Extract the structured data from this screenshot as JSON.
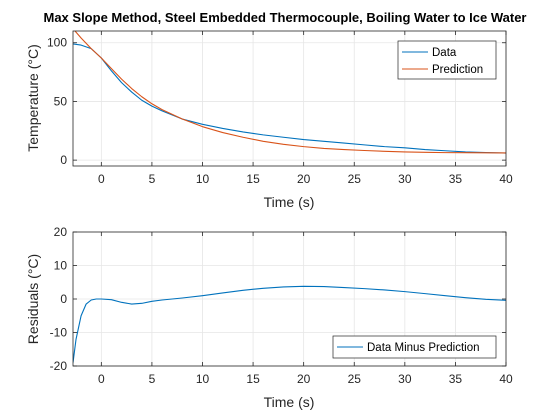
{
  "colors": {
    "data": "#0072BD",
    "prediction": "#D95319",
    "grid": "#e6e6e6",
    "axis": "#262626"
  },
  "chart_data": [
    {
      "type": "line",
      "title": "Max Slope Method, Steel Embedded Thermocouple, Boiling Water to Ice Water",
      "xlabel": "Time (s)",
      "ylabel": "Temperature (°C)",
      "xlim": [
        -2.8,
        40
      ],
      "ylim": [
        -5,
        110
      ],
      "xticks": [
        0,
        5,
        10,
        15,
        20,
        25,
        30,
        35,
        40
      ],
      "yticks": [
        0,
        50,
        100
      ],
      "grid": true,
      "legend": "top-right",
      "series": [
        {
          "name": "Data",
          "x": [
            -2.8,
            -2,
            -1,
            0,
            1,
            2,
            3,
            4,
            5,
            6,
            8,
            10,
            12,
            14,
            16,
            18,
            20,
            22,
            24,
            26,
            28,
            30,
            32,
            34,
            36,
            38,
            40
          ],
          "y": [
            99,
            98,
            95,
            87,
            76,
            66,
            58,
            51,
            46,
            42,
            35,
            30.5,
            27,
            24,
            21.5,
            19.5,
            17.5,
            16,
            14.5,
            13,
            11.5,
            10.5,
            9,
            8,
            7,
            6.5,
            6
          ]
        },
        {
          "name": "Prediction",
          "x": [
            -2.6,
            -2,
            -1,
            0,
            1,
            2,
            3,
            4,
            5,
            6,
            8,
            10,
            12,
            14,
            16,
            18,
            20,
            22,
            24,
            26,
            28,
            30,
            32,
            34,
            36,
            38,
            40
          ],
          "y": [
            110,
            104,
            95,
            87,
            78,
            69,
            61,
            54,
            48,
            43,
            35,
            28.5,
            23.5,
            19.5,
            16,
            13.5,
            11.5,
            10,
            9,
            8.2,
            7.5,
            7,
            6.7,
            6.4,
            6.3,
            6.2,
            6.1
          ]
        }
      ]
    },
    {
      "type": "line",
      "xlabel": "Time (s)",
      "ylabel": "Residuals (°C)",
      "xlim": [
        -2.8,
        40
      ],
      "ylim": [
        -20,
        20
      ],
      "xticks": [
        0,
        5,
        10,
        15,
        20,
        25,
        30,
        35,
        40
      ],
      "yticks": [
        -20,
        -10,
        0,
        10,
        20
      ],
      "grid": true,
      "legend": "bottom-right",
      "series": [
        {
          "name": "Data Minus Prediction",
          "x": [
            -2.8,
            -2.5,
            -2,
            -1.5,
            -1,
            -0.5,
            0,
            1,
            2,
            3,
            4,
            5,
            6,
            8,
            10,
            12,
            14,
            16,
            18,
            20,
            22,
            24,
            26,
            28,
            30,
            32,
            34,
            36,
            38,
            40
          ],
          "y": [
            -19,
            -12,
            -5,
            -1.5,
            -0.3,
            0,
            0,
            -0.2,
            -1,
            -1.5,
            -1.3,
            -0.7,
            -0.3,
            0.3,
            1,
            1.8,
            2.6,
            3.2,
            3.6,
            3.8,
            3.7,
            3.4,
            3.1,
            2.7,
            2.2,
            1.6,
            1,
            0.4,
            -0.1,
            -0.4
          ]
        }
      ]
    }
  ]
}
